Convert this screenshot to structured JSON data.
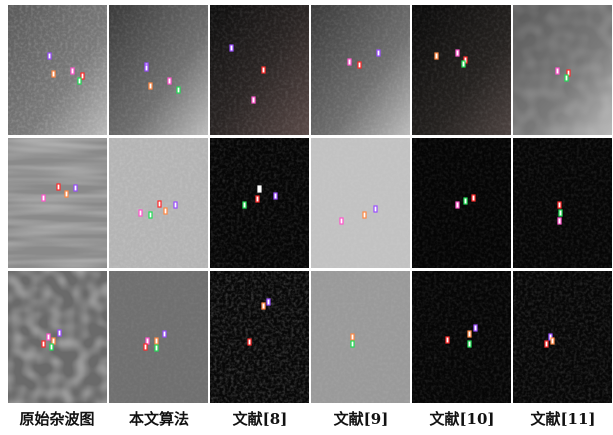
{
  "column_labels": [
    "原始杂波图",
    "本文算法",
    "文献[8]",
    "文献[9]",
    "文献[10]",
    "文献[11]"
  ]
}
